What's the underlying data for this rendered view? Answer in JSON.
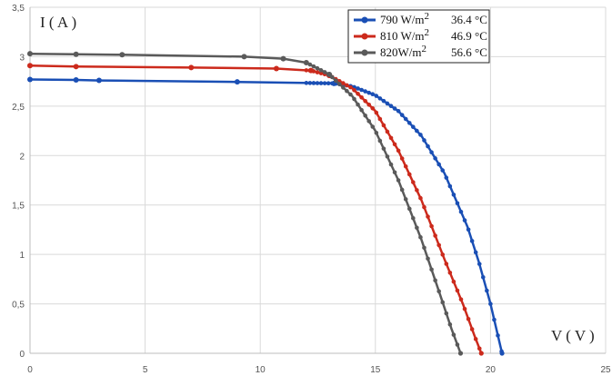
{
  "chart_data": {
    "type": "line",
    "title": "",
    "xlabel": "V ( V )",
    "ylabel": "I ( A )",
    "xlim": [
      0,
      25
    ],
    "ylim": [
      0,
      3.5
    ],
    "x_ticks": [
      "0",
      "5",
      "10",
      "15",
      "20",
      "25"
    ],
    "y_ticks": [
      "0",
      "0,5",
      "1",
      "1,5",
      "2",
      "2,5",
      "3",
      "3,5"
    ],
    "grid": true,
    "legend_position": "top-right",
    "series": [
      {
        "name": "790 W/m² 36.4 °C",
        "color": "#1a4fb5",
        "isc": 2.77,
        "voc": 20.5,
        "points": [
          [
            0,
            2.77
          ],
          [
            2,
            2.765
          ],
          [
            3,
            2.76
          ],
          [
            9,
            2.745
          ],
          [
            13.2,
            2.73
          ],
          [
            14,
            2.7
          ],
          [
            15,
            2.61
          ],
          [
            16,
            2.45
          ],
          [
            17,
            2.2
          ],
          [
            18,
            1.82
          ],
          [
            19,
            1.28
          ],
          [
            19.5,
            0.92
          ],
          [
            20,
            0.5
          ],
          [
            20.3,
            0.2
          ],
          [
            20.5,
            0
          ]
        ]
      },
      {
        "name": "810 W/m² 46.9 °C",
        "color": "#cc2a1c",
        "isc": 2.91,
        "voc": 19.6,
        "points": [
          [
            0,
            2.91
          ],
          [
            2,
            2.9
          ],
          [
            7,
            2.89
          ],
          [
            10.7,
            2.88
          ],
          [
            12.2,
            2.86
          ],
          [
            13,
            2.81
          ],
          [
            14,
            2.68
          ],
          [
            15,
            2.45
          ],
          [
            16,
            2.05
          ],
          [
            17,
            1.55
          ],
          [
            18,
            0.95
          ],
          [
            18.8,
            0.5
          ],
          [
            19.3,
            0.18
          ],
          [
            19.6,
            0
          ]
        ]
      },
      {
        "name": "820W/m² 56.6 °C",
        "color": "#5a5a5a",
        "isc": 3.03,
        "voc": 18.7,
        "points": [
          [
            0,
            3.03
          ],
          [
            2,
            3.025
          ],
          [
            4,
            3.02
          ],
          [
            9.3,
            3.0
          ],
          [
            11,
            2.98
          ],
          [
            12,
            2.94
          ],
          [
            13,
            2.82
          ],
          [
            14,
            2.6
          ],
          [
            15,
            2.25
          ],
          [
            16,
            1.75
          ],
          [
            17,
            1.15
          ],
          [
            17.8,
            0.6
          ],
          [
            18.3,
            0.25
          ],
          [
            18.7,
            0
          ]
        ]
      }
    ]
  },
  "legend": {
    "items": [
      {
        "main": "790 W/m",
        "sup": "2",
        "temp": "36.4 °C"
      },
      {
        "main": "810 W/m",
        "sup": "2",
        "temp": "46.9 °C"
      },
      {
        "main": "820W/m",
        "sup": "2",
        "temp": "56.6 °C"
      }
    ]
  }
}
